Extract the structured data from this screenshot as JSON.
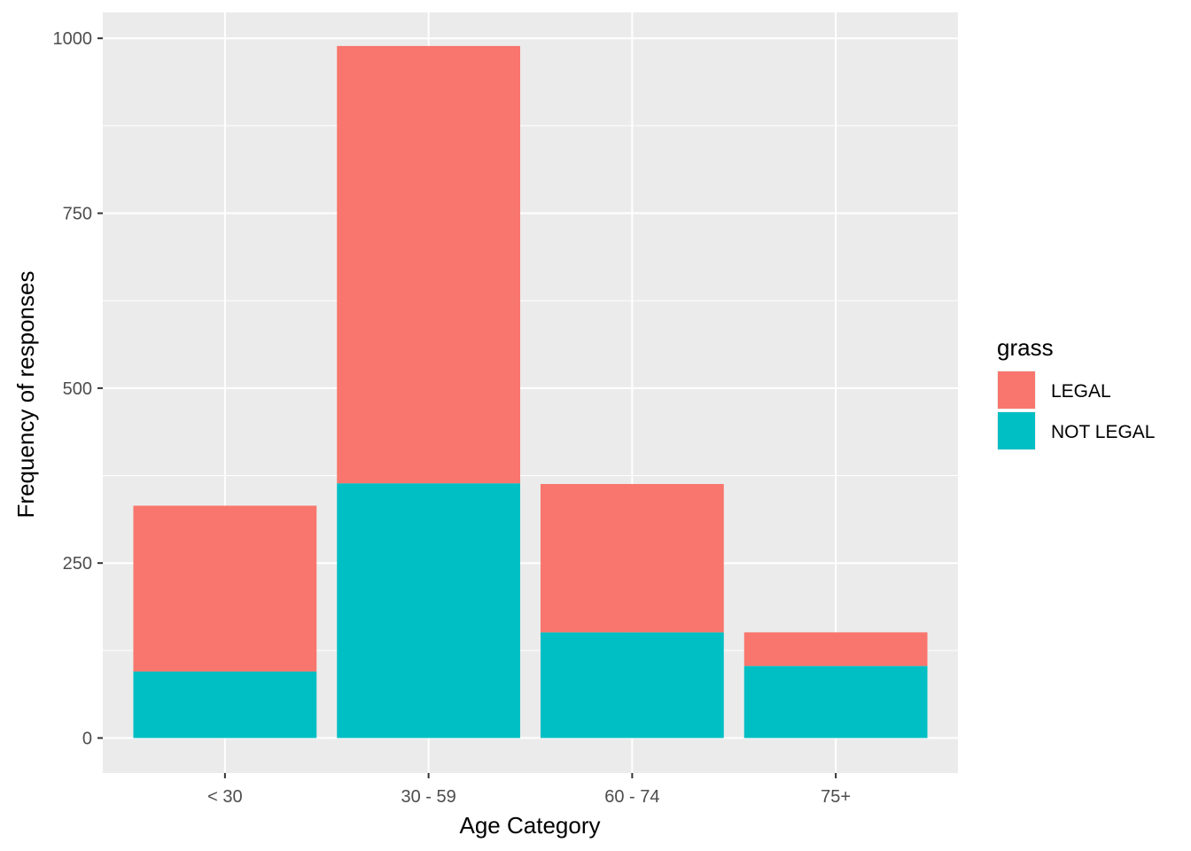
{
  "chart_data": {
    "type": "bar",
    "stacked": true,
    "categories": [
      "< 30",
      "30 - 59",
      "60 - 74",
      "75+"
    ],
    "series": [
      {
        "name": "LEGAL",
        "values": [
          237,
          625,
          212,
          48
        ],
        "color": "#F8766D"
      },
      {
        "name": "NOT LEGAL",
        "values": [
          95,
          364,
          151,
          103
        ],
        "color": "#00BFC4"
      }
    ],
    "title": "",
    "xlabel": "Age Category",
    "ylabel": "Frequency of responses",
    "ylim": [
      -50,
      1037
    ],
    "yticks": [
      0,
      250,
      500,
      750,
      1000
    ],
    "ytick_labels": [
      "0",
      "250",
      "500",
      "750",
      "1000"
    ],
    "grid": true,
    "panel_background": "#EBEBEB",
    "grid_color": "#FFFFFF",
    "legend": {
      "title": "grass",
      "position": "right"
    }
  }
}
